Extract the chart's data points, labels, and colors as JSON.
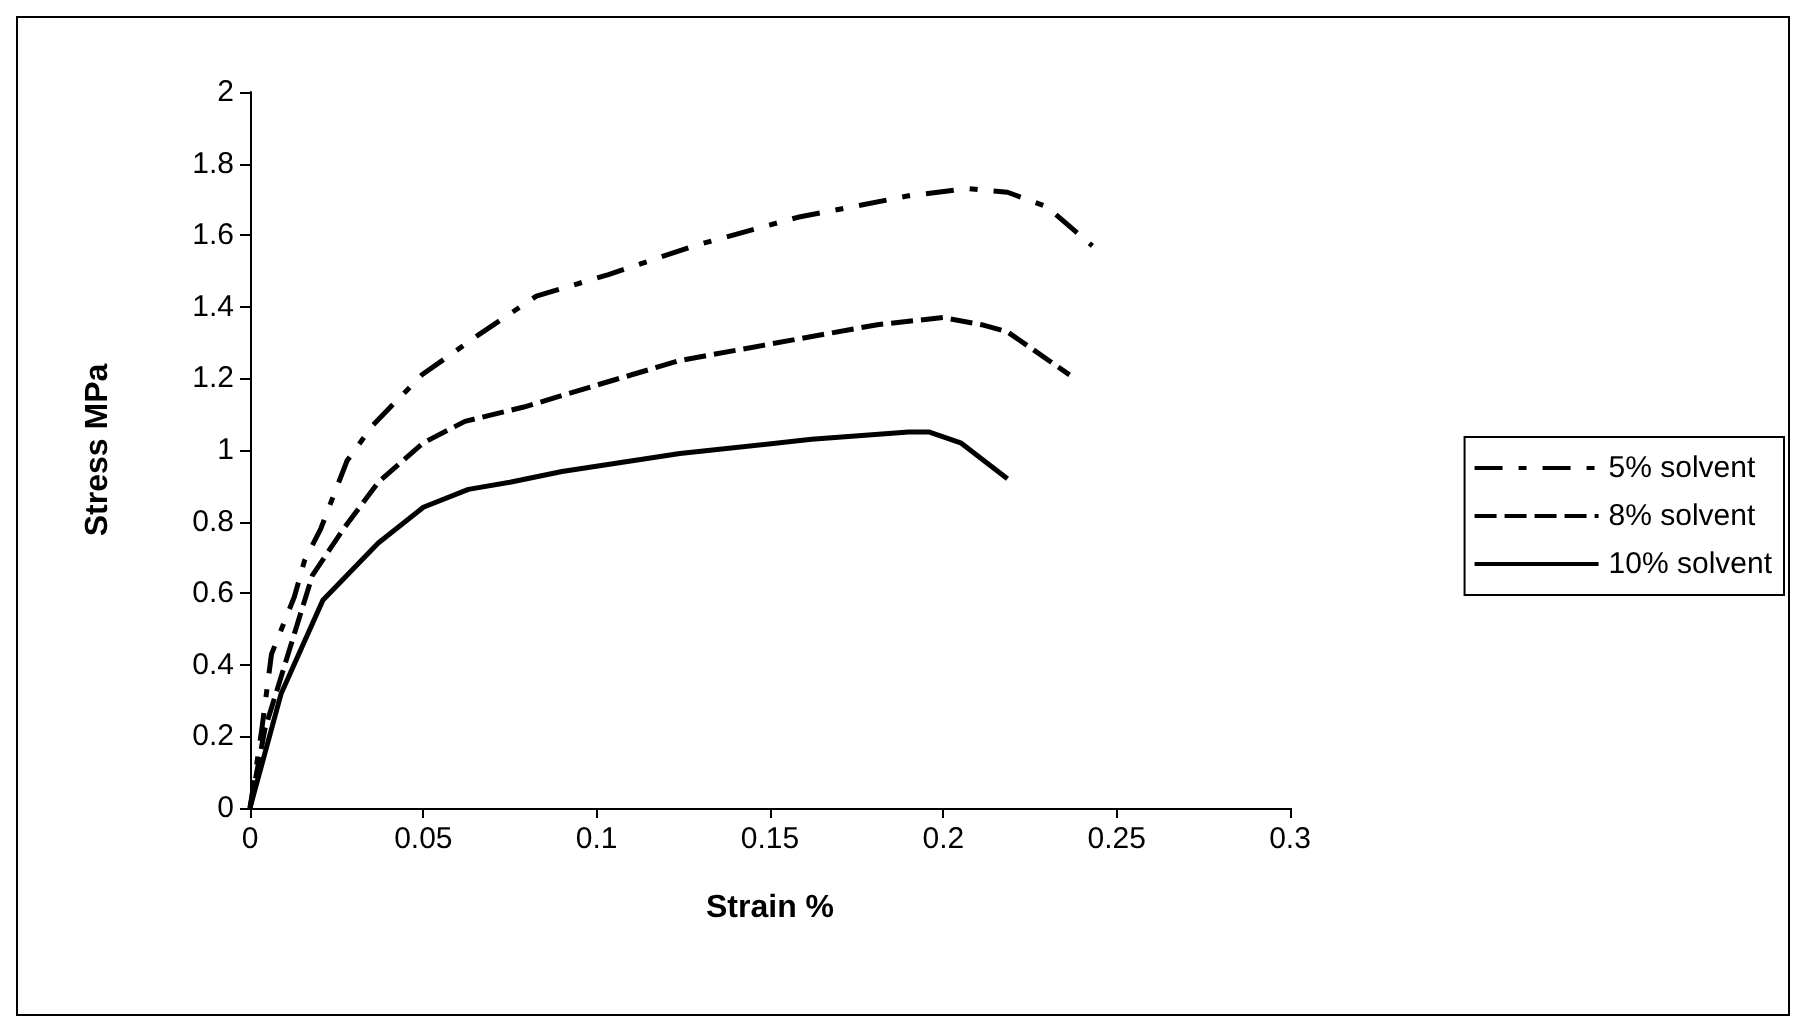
{
  "chart_data": {
    "type": "line",
    "xlabel": "Strain %",
    "ylabel": "Stress MPa",
    "xlim": [
      0,
      0.3
    ],
    "xticks": [
      0,
      0.05,
      0.1,
      0.15,
      0.2,
      0.25,
      0.3
    ],
    "ylim": [
      0,
      2
    ],
    "yticks": [
      0,
      0.2,
      0.4,
      0.6,
      0.8,
      1,
      1.2,
      1.4,
      1.6,
      1.8,
      2
    ],
    "grid": false,
    "legend": "right",
    "marker": "none",
    "series": [
      {
        "name": "5% solvent",
        "color": "#000000",
        "line_style": "dashdot",
        "x": [
          0,
          0.0019,
          0.0034,
          0.0062,
          0.0128,
          0.0157,
          0.0204,
          0.028,
          0.0355,
          0.0496,
          0.0657,
          0.0826,
          0.1034,
          0.128,
          0.158,
          0.19,
          0.207,
          0.2185,
          0.2298,
          0.243
        ],
        "values": [
          0,
          0.12,
          0.22,
          0.43,
          0.59,
          0.69,
          0.78,
          0.97,
          1.07,
          1.21,
          1.32,
          1.43,
          1.49,
          1.57,
          1.65,
          1.71,
          1.73,
          1.72,
          1.68,
          1.57
        ]
      },
      {
        "name": "8% solvent",
        "color": "#000000",
        "line_style": "dashed",
        "x": [
          0,
          0.0043,
          0.011,
          0.018,
          0.027,
          0.037,
          0.05,
          0.062,
          0.079,
          0.0996,
          0.124,
          0.158,
          0.181,
          0.2,
          0.211,
          0.2185,
          0.2364
        ],
        "values": [
          0,
          0.22,
          0.43,
          0.65,
          0.78,
          0.91,
          1.02,
          1.08,
          1.12,
          1.18,
          1.25,
          1.31,
          1.35,
          1.37,
          1.35,
          1.33,
          1.21
        ]
      },
      {
        "name": "10% solvent",
        "color": "#000000",
        "line_style": "solid",
        "x": [
          0,
          0.009,
          0.021,
          0.037,
          0.05,
          0.063,
          0.075,
          0.09,
          0.124,
          0.162,
          0.19,
          0.196,
          0.205,
          0.2185
        ],
        "values": [
          0,
          0.32,
          0.58,
          0.74,
          0.84,
          0.89,
          0.91,
          0.94,
          0.99,
          1.03,
          1.05,
          1.05,
          1.02,
          0.92
        ]
      }
    ]
  }
}
